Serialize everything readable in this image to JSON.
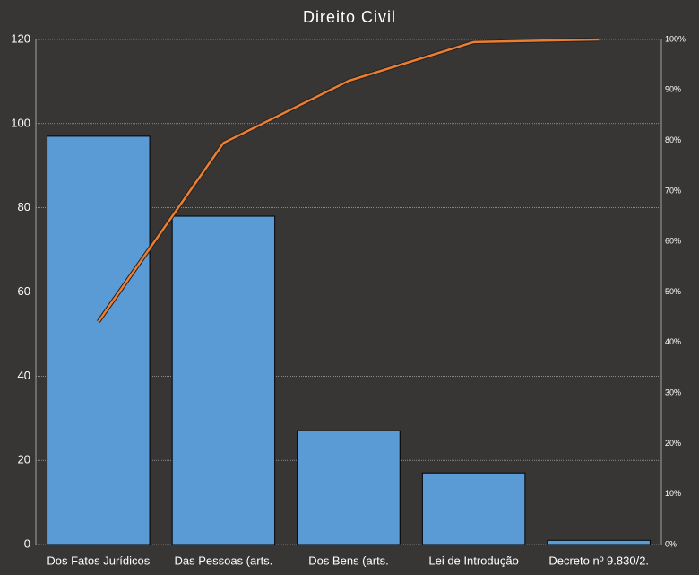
{
  "chart_data": {
    "type": "pareto",
    "title": "Direito Civil",
    "categories": [
      "Dos Fatos Jurídicos",
      "Das Pessoas (arts.",
      "Dos Bens (arts.",
      "Lei de Introdução",
      "Decreto nº 9.830/2."
    ],
    "series": [
      {
        "type": "bar",
        "color": "#5b9bd5",
        "values": [
          97,
          78,
          27,
          17,
          1
        ]
      },
      {
        "type": "line",
        "color": "#ed7d31",
        "axis": "y2",
        "values": [
          44.1,
          79.5,
          91.8,
          99.5,
          100
        ]
      }
    ],
    "ylim": [
      0,
      120
    ],
    "yticks": [
      0,
      20,
      40,
      60,
      80,
      100,
      120
    ],
    "y2lim": [
      0,
      100
    ],
    "y2ticks": [
      {
        "value": 0,
        "label": "0%"
      },
      {
        "value": 10,
        "label": "10%"
      },
      {
        "value": 20,
        "label": "20%"
      },
      {
        "value": 30,
        "label": "30%"
      },
      {
        "value": 40,
        "label": "40%"
      },
      {
        "value": 50,
        "label": "50%"
      },
      {
        "value": 60,
        "label": "60%"
      },
      {
        "value": 70,
        "label": "70%"
      },
      {
        "value": 80,
        "label": "80%"
      },
      {
        "value": 90,
        "label": "90%"
      },
      {
        "value": 100,
        "label": "100%"
      }
    ],
    "grid": true
  }
}
